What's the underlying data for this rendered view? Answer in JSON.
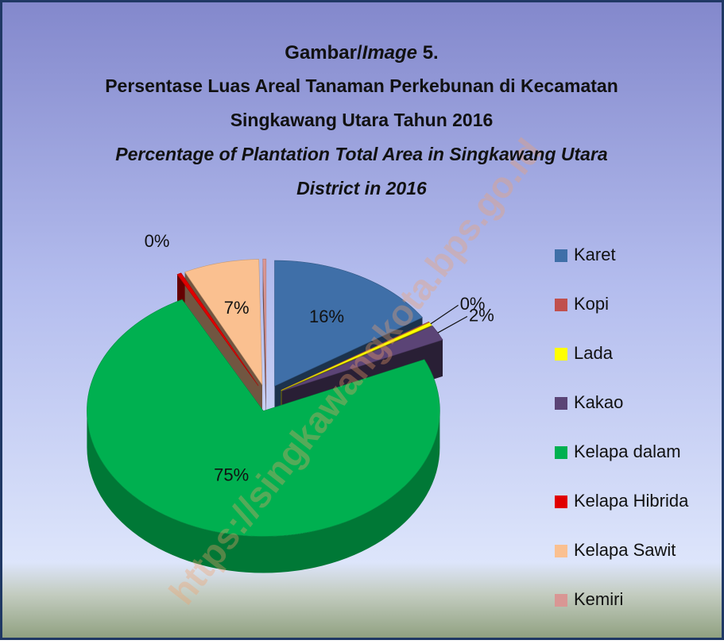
{
  "chart_data": {
    "type": "pie3d",
    "title": {
      "line1": [
        {
          "text": "Gambar/"
        },
        {
          "text": "Image",
          "italic": true
        },
        {
          "text": " 5."
        }
      ],
      "indonesian": [
        "Persentase Luas Areal Tanaman Perkebunan di Kecamatan",
        "Singkawang Utara Tahun 2016"
      ],
      "english": [
        "Percentage of Plantation Total Area in Singkawang Utara",
        "District in 2016"
      ]
    },
    "watermark": "https://singkawangkota.bps.go.id",
    "categories": [
      "Karet",
      "Kopi",
      "Lada",
      "Kakao",
      "Kelapa dalam",
      "Kelapa Hibrida",
      "Kelapa Sawit",
      "Kemiri"
    ],
    "values": [
      16,
      0.1,
      0.4,
      2,
      75,
      0.4,
      7,
      0.3
    ],
    "value_labels": [
      "16%",
      null,
      "0%",
      "2%",
      "75%",
      "0%",
      "7%",
      null
    ],
    "colors": [
      "#3f6fa8",
      "#c0504d",
      "#ffff00",
      "#5b4476",
      "#00b050",
      "#e00000",
      "#fac090",
      "#d99694"
    ],
    "legend": "right"
  }
}
